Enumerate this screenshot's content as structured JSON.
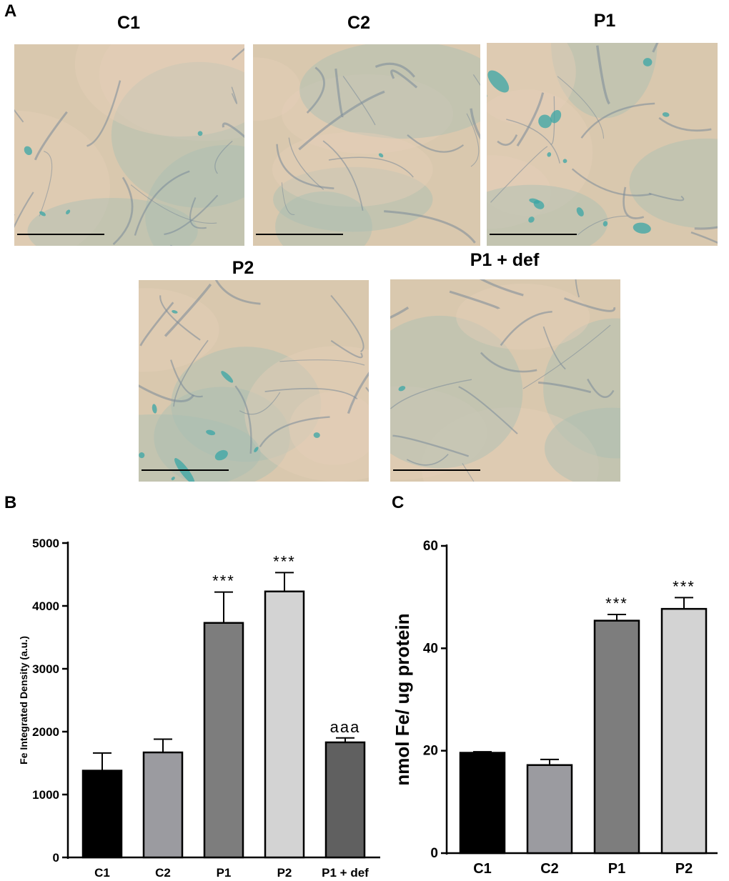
{
  "panels": {
    "A": "A",
    "B": "B",
    "C": "C"
  },
  "micrographs": [
    {
      "label": "C1",
      "stain_level": 0.08
    },
    {
      "label": "C2",
      "stain_level": 0.03
    },
    {
      "label": "P1",
      "stain_level": 0.9
    },
    {
      "label": "P2",
      "stain_level": 0.6
    },
    {
      "label": "P1 + def",
      "stain_level": 0.15
    }
  ],
  "colors": {
    "background_tissue": "#d9c8ae",
    "prussian_blue": "#3aa6a6",
    "cell_outline": "#7a8a99",
    "bar_c1": "#000000",
    "bar_c2": "#9b9ba0",
    "bar_p1": "#7d7d7d",
    "bar_p2": "#d3d3d3",
    "bar_p1def": "#606060"
  },
  "chart_data": [
    {
      "type": "bar",
      "panel": "B",
      "ylabel": "Fe Integrated Density (a.u.)",
      "categories": [
        "C1",
        "C2",
        "P1",
        "P2",
        "P1 + def"
      ],
      "values": [
        1380,
        1670,
        3730,
        4230,
        1830
      ],
      "errors": [
        280,
        210,
        490,
        300,
        70
      ],
      "annotations": [
        "",
        "",
        "***",
        "***",
        "aaa"
      ],
      "ylim": [
        0,
        5000
      ],
      "yticks": [
        "0",
        "1000",
        "2000",
        "3000",
        "4000",
        "5000"
      ],
      "ytick_values": [
        0,
        1000,
        2000,
        3000,
        4000,
        5000
      ]
    },
    {
      "type": "bar",
      "panel": "C",
      "ylabel": "nmol Fe/ ug protein",
      "categories": [
        "C1",
        "C2",
        "P1",
        "P2"
      ],
      "values": [
        19.6,
        17.2,
        45.4,
        47.7
      ],
      "errors": [
        0.2,
        1.1,
        1.2,
        2.2
      ],
      "annotations": [
        "",
        "",
        "***",
        "***"
      ],
      "ylim": [
        0,
        60
      ],
      "yticks": [
        "0",
        "20",
        "40",
        "60"
      ],
      "ytick_values": [
        0,
        20,
        40,
        60
      ]
    }
  ]
}
